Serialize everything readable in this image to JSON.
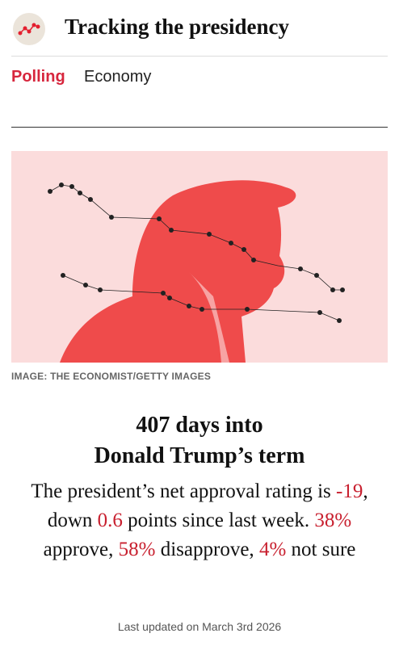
{
  "header": {
    "title": "Tracking the presidency"
  },
  "tabs": [
    "Polling",
    "Economy"
  ],
  "image": {
    "credit": "IMAGE: THE ECONOMIST/GETTY IMAGES"
  },
  "headline": [
    "407 days into",
    "Donald Trump’s term"
  ],
  "summary": [
    "The president’s net approval rating is ",
    "-19",
    ", down ",
    "0.6",
    " points since last week. ",
    "38%",
    " approve, ",
    "58%",
    " disapprove, ",
    "4%",
    " not sure"
  ],
  "footer": {
    "updated": "Last updated on March 3rd 2026"
  }
}
